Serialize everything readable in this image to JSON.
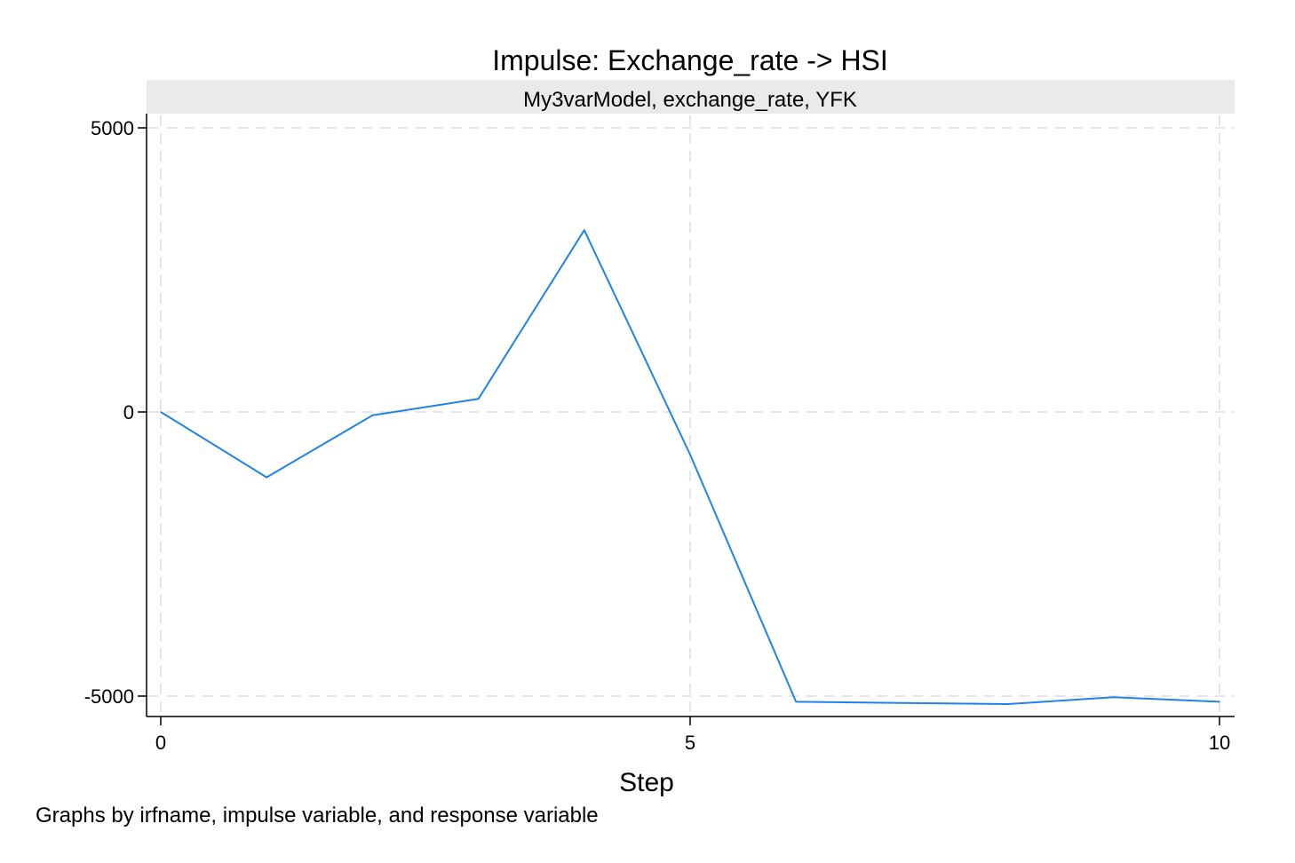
{
  "chart_data": {
    "type": "line",
    "title": "Impulse: Exchange_rate -> HSI",
    "subtitle": "My3varModel, exchange_rate, YFK",
    "xlabel": "Step",
    "ylabel": "",
    "note": "Graphs by irfname, impulse variable, and response variable",
    "xlim": [
      0,
      10
    ],
    "ylim": [
      -5000,
      5000
    ],
    "x_ticks": [
      0,
      5,
      10
    ],
    "y_ticks": [
      5000,
      0,
      -5000
    ],
    "grid": true,
    "x": [
      0,
      1,
      2,
      3,
      4,
      5,
      6,
      7,
      8,
      9,
      10
    ],
    "series": [
      {
        "color": "#1f83e8",
        "values": [
          0,
          -1150,
          -60,
          230,
          3200,
          -750,
          -5100,
          -5120,
          -5140,
          -5020,
          -5100
        ]
      }
    ]
  }
}
